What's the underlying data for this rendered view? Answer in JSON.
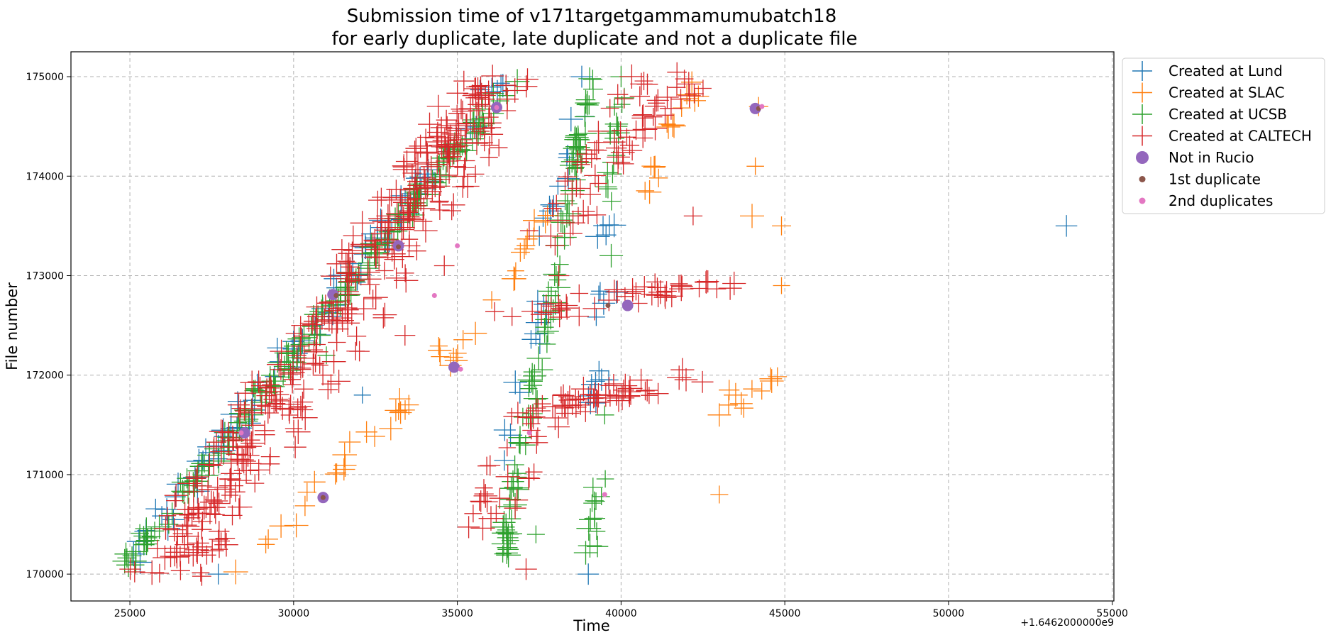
{
  "chart_data": {
    "type": "scatter",
    "title_lines": [
      "Submission time of v171targetgammamumubatch18",
      "for early duplicate, late duplicate and not a duplicate file"
    ],
    "xlabel": "Time",
    "ylabel": "File number",
    "x_offset_label": "+1.6462000000e9",
    "xlim": [
      23200,
      55050
    ],
    "ylim": [
      169730,
      175250
    ],
    "x_ticks": [
      25000,
      30000,
      35000,
      40000,
      45000,
      50000,
      55000
    ],
    "x_tick_labels": [
      "25000",
      "30000",
      "35000",
      "40000",
      "45000",
      "50000",
      "55000"
    ],
    "y_ticks": [
      170000,
      171000,
      172000,
      173000,
      174000,
      175000
    ],
    "y_tick_labels": [
      "170000",
      "171000",
      "172000",
      "173000",
      "174000",
      "175000"
    ],
    "grid": true,
    "legend_position": "outside-top-right",
    "series": [
      {
        "name": "Created at Lund",
        "marker": "plus",
        "color": "#1f77b4",
        "segments": [
          {
            "x0": 24700,
            "y0": 170000,
            "x1": 36400,
            "y1": 175000,
            "jitter_x": 450,
            "jitter_y": 60,
            "count": 90
          },
          {
            "x0": 37600,
            "y0": 173400,
            "x1": 38800,
            "y1": 174700,
            "jitter_x": 250,
            "jitter_y": 60,
            "count": 10
          },
          {
            "x0": 36200,
            "y0": 170900,
            "x1": 37700,
            "y1": 172800,
            "jitter_x": 250,
            "jitter_y": 80,
            "count": 12
          },
          {
            "x0": 39200,
            "y0": 171700,
            "x1": 39500,
            "y1": 172000,
            "jitter_x": 250,
            "jitter_y": 80,
            "count": 8
          },
          {
            "x0": 39300,
            "y0": 172600,
            "x1": 39800,
            "y1": 172900,
            "jitter_x": 250,
            "jitter_y": 80,
            "count": 5
          },
          {
            "x0": 39400,
            "y0": 173400,
            "x1": 39800,
            "y1": 173600,
            "jitter_x": 200,
            "jitter_y": 60,
            "count": 5
          }
        ],
        "points": [
          {
            "x": 53600,
            "y": 173500
          },
          {
            "x": 38900,
            "y": 174600
          },
          {
            "x": 38800,
            "y": 175000
          },
          {
            "x": 27700,
            "y": 170000
          },
          {
            "x": 39000,
            "y": 170000
          },
          {
            "x": 32100,
            "y": 171800
          }
        ]
      },
      {
        "name": "Created at SLAC",
        "marker": "plus",
        "color": "#ff7f0e",
        "segments": [
          {
            "x0": 28300,
            "y0": 170000,
            "x1": 35300,
            "y1": 172400,
            "jitter_x": 350,
            "jitter_y": 80,
            "count": 30
          },
          {
            "x0": 35200,
            "y0": 172200,
            "x1": 37700,
            "y1": 173600,
            "jitter_x": 300,
            "jitter_y": 80,
            "count": 14
          },
          {
            "x0": 40600,
            "y0": 173800,
            "x1": 41700,
            "y1": 174400,
            "jitter_x": 250,
            "jitter_y": 60,
            "count": 6
          },
          {
            "x0": 41500,
            "y0": 174500,
            "x1": 42500,
            "y1": 175000,
            "jitter_x": 300,
            "jitter_y": 50,
            "count": 10
          },
          {
            "x0": 43500,
            "y0": 171700,
            "x1": 45000,
            "y1": 172000,
            "jitter_x": 300,
            "jitter_y": 80,
            "count": 8
          }
        ],
        "points": [
          {
            "x": 43000,
            "y": 170800
          },
          {
            "x": 43000,
            "y": 171600
          },
          {
            "x": 44000,
            "y": 173600
          },
          {
            "x": 44900,
            "y": 173500
          },
          {
            "x": 44100,
            "y": 174100
          },
          {
            "x": 44900,
            "y": 172900
          },
          {
            "x": 44200,
            "y": 174700
          },
          {
            "x": 43500,
            "y": 171800
          },
          {
            "x": 43300,
            "y": 171850
          }
        ]
      },
      {
        "name": "Created at UCSB",
        "marker": "plus",
        "color": "#2ca02c",
        "segments": [
          {
            "x0": 24900,
            "y0": 170100,
            "x1": 36600,
            "y1": 174950,
            "jitter_x": 300,
            "jitter_y": 50,
            "count": 170
          },
          {
            "x0": 36400,
            "y0": 170200,
            "x1": 39100,
            "y1": 175000,
            "jitter_x": 180,
            "jitter_y": 60,
            "count": 100
          },
          {
            "x0": 39000,
            "y0": 170000,
            "x1": 39400,
            "y1": 171200,
            "jitter_x": 180,
            "jitter_y": 80,
            "count": 14
          },
          {
            "x0": 39500,
            "y0": 173700,
            "x1": 40000,
            "y1": 174900,
            "jitter_x": 200,
            "jitter_y": 80,
            "count": 16
          }
        ],
        "points": [
          {
            "x": 37400,
            "y": 170400
          },
          {
            "x": 39500,
            "y": 171600
          },
          {
            "x": 30800,
            "y": 172400
          },
          {
            "x": 31000,
            "y": 172200
          },
          {
            "x": 40000,
            "y": 175000
          },
          {
            "x": 39700,
            "y": 173200
          }
        ]
      },
      {
        "name": "Created at CALTECH",
        "marker": "plus",
        "color": "#d62728",
        "segments": [
          {
            "x0": 25500,
            "y0": 170000,
            "x1": 35800,
            "y1": 175000,
            "jitter_x": 700,
            "jitter_y": 70,
            "count": 220
          },
          {
            "x0": 26500,
            "y0": 170000,
            "x1": 36500,
            "y1": 174900,
            "jitter_x": 900,
            "jitter_y": 100,
            "count": 180
          },
          {
            "x0": 37800,
            "y0": 173300,
            "x1": 41200,
            "y1": 175000,
            "jitter_x": 900,
            "jitter_y": 100,
            "count": 50
          },
          {
            "x0": 35800,
            "y0": 170500,
            "x1": 37800,
            "y1": 171800,
            "jitter_x": 700,
            "jitter_y": 100,
            "count": 30
          },
          {
            "x0": 37000,
            "y0": 172600,
            "x1": 42800,
            "y1": 172950,
            "jitter_x": 1200,
            "jitter_y": 60,
            "count": 45
          },
          {
            "x0": 37000,
            "y0": 171600,
            "x1": 42200,
            "y1": 172000,
            "jitter_x": 1000,
            "jitter_y": 60,
            "count": 50
          },
          {
            "x0": 40200,
            "y0": 174400,
            "x1": 42500,
            "y1": 175000,
            "jitter_x": 500,
            "jitter_y": 60,
            "count": 18
          }
        ],
        "points": [
          {
            "x": 37100,
            "y": 170050
          },
          {
            "x": 42200,
            "y": 173600
          },
          {
            "x": 38100,
            "y": 173000
          },
          {
            "x": 34600,
            "y": 173100
          },
          {
            "x": 33400,
            "y": 172400
          }
        ]
      },
      {
        "name": "Not in Rucio",
        "marker": "circle",
        "color": "#9467bd",
        "points": [
          {
            "x": 30900,
            "y": 170770
          },
          {
            "x": 28500,
            "y": 171420
          },
          {
            "x": 31200,
            "y": 172810
          },
          {
            "x": 33200,
            "y": 173300
          },
          {
            "x": 34900,
            "y": 172080
          },
          {
            "x": 36200,
            "y": 174690
          },
          {
            "x": 40200,
            "y": 172700
          },
          {
            "x": 44100,
            "y": 174680
          }
        ]
      },
      {
        "name": "1st duplicate",
        "marker": "dot",
        "color": "#8c564b",
        "points": [
          {
            "x": 30900,
            "y": 170770
          },
          {
            "x": 31300,
            "y": 172800
          },
          {
            "x": 33200,
            "y": 173290
          },
          {
            "x": 39600,
            "y": 172700
          },
          {
            "x": 44200,
            "y": 174680
          }
        ]
      },
      {
        "name": "2nd duplicates",
        "marker": "dot",
        "color": "#e377c2",
        "points": [
          {
            "x": 28400,
            "y": 171420
          },
          {
            "x": 34300,
            "y": 172800
          },
          {
            "x": 35000,
            "y": 173300
          },
          {
            "x": 36200,
            "y": 174690
          },
          {
            "x": 37200,
            "y": 171420
          },
          {
            "x": 39500,
            "y": 170800
          },
          {
            "x": 44300,
            "y": 174700
          },
          {
            "x": 35100,
            "y": 172060
          }
        ]
      }
    ]
  }
}
